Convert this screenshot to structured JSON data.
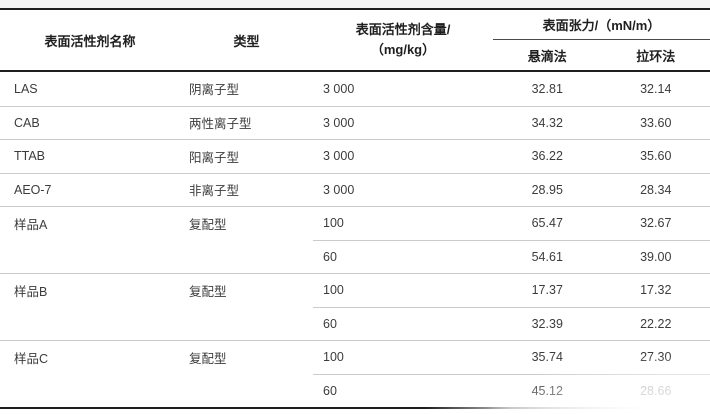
{
  "colors": {
    "rule": "#1f1f1f",
    "row_separator": "#cbcbcb",
    "header_text": "#1f1f1f",
    "body_text": "#3c3c3c",
    "top_strip": "#f4f4f4"
  },
  "table": {
    "header": {
      "name": "表面活性剂名称",
      "type": "类型",
      "amount_line1": "表面活性剂含量/",
      "amount_line2": "（mg/kg）",
      "tension_group": "表面张力/（mN/m）",
      "pendant": "悬滴法",
      "ring": "拉环法"
    },
    "groups": [
      {
        "name": "LAS",
        "type": "阴离子型",
        "entries": [
          {
            "content": "3 000",
            "pendant": "32.81",
            "ring": "32.14"
          }
        ]
      },
      {
        "name": "CAB",
        "type": "两性离子型",
        "entries": [
          {
            "content": "3 000",
            "pendant": "34.32",
            "ring": "33.60"
          }
        ]
      },
      {
        "name": "TTAB",
        "type": "阳离子型",
        "entries": [
          {
            "content": "3 000",
            "pendant": "36.22",
            "ring": "35.60"
          }
        ]
      },
      {
        "name": "AEO-7",
        "type": "非离子型",
        "entries": [
          {
            "content": "3 000",
            "pendant": "28.95",
            "ring": "28.34"
          }
        ]
      },
      {
        "name": "样品A",
        "type": "复配型",
        "entries": [
          {
            "content": "100",
            "pendant": "65.47",
            "ring": "32.67"
          },
          {
            "content": "60",
            "pendant": "54.61",
            "ring": "39.00"
          }
        ]
      },
      {
        "name": "样品B",
        "type": "复配型",
        "entries": [
          {
            "content": "100",
            "pendant": "17.37",
            "ring": "17.32"
          },
          {
            "content": "60",
            "pendant": "32.39",
            "ring": "22.22"
          }
        ]
      },
      {
        "name": "样品C",
        "type": "复配型",
        "entries": [
          {
            "content": "100",
            "pendant": "35.74",
            "ring": "27.30"
          },
          {
            "content": "60",
            "pendant": "45.12",
            "ring": "28.66"
          }
        ]
      }
    ]
  }
}
